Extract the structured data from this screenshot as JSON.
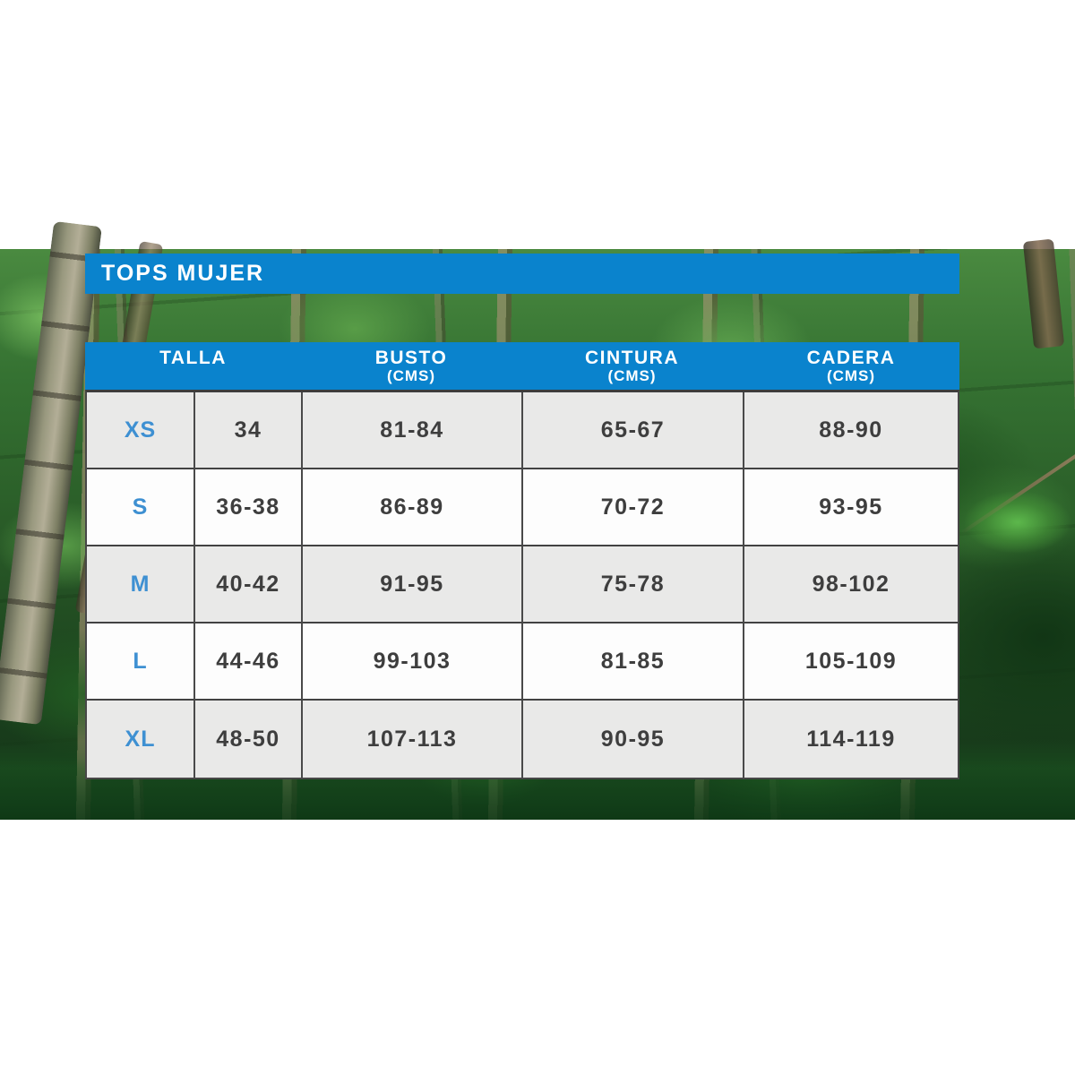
{
  "header": {
    "title": "TOPS MUJER"
  },
  "size_chart": {
    "columns": [
      {
        "label": "TALLA",
        "unit": ""
      },
      {
        "label": "BUSTO",
        "unit": "(CMS)"
      },
      {
        "label": "CINTURA",
        "unit": "(CMS)"
      },
      {
        "label": "CADERA",
        "unit": "(CMS)"
      }
    ],
    "rows": [
      {
        "size": "XS",
        "talla": "34",
        "busto": "81-84",
        "cintura": "65-67",
        "cadera": "88-90"
      },
      {
        "size": "S",
        "talla": "36-38",
        "busto": "86-89",
        "cintura": "70-72",
        "cadera": "93-95"
      },
      {
        "size": "M",
        "talla": "40-42",
        "busto": "91-95",
        "cintura": "75-78",
        "cadera": "98-102"
      },
      {
        "size": "L",
        "talla": "44-46",
        "busto": "99-103",
        "cintura": "81-85",
        "cadera": "105-109"
      },
      {
        "size": "XL",
        "talla": "48-50",
        "busto": "107-113",
        "cintura": "90-95",
        "cadera": "114-119"
      }
    ]
  },
  "colors": {
    "accent_blue": "#0a83cd",
    "size_label_blue": "#3e90d2",
    "row_gray": "#e9e9e8",
    "row_white": "#fdfdfd",
    "grid_line": "#4a4a4a",
    "value_text": "#3e3e3e"
  }
}
